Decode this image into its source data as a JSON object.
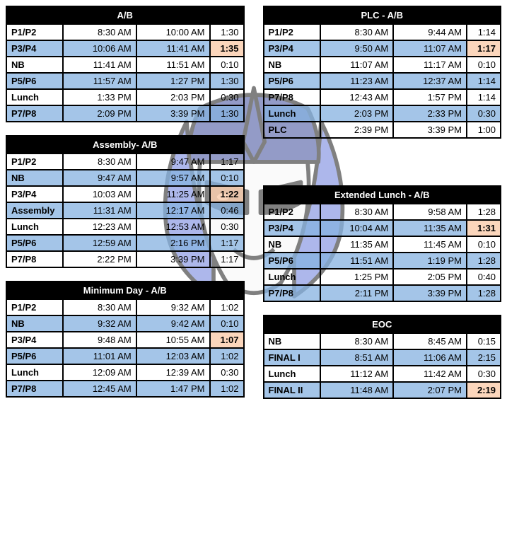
{
  "colors": {
    "header_bg": "#000000",
    "header_fg": "#ffffff",
    "row_shade": "#86b2e0",
    "highlight": "#facfb0",
    "border": "#000000"
  },
  "mascot": {
    "blue_dark": "#3b4a9b",
    "blue_light": "#6b7ddc",
    "outline": "#1a1a1a",
    "white": "#f6f6f6"
  },
  "schedules": [
    {
      "id": "ab",
      "col": 0,
      "title": "A/B",
      "rows": [
        {
          "label": "P1/P2",
          "start": "8:30 AM",
          "end": "10:00 AM",
          "dur": "1:30",
          "shaded": false
        },
        {
          "label": "P3/P4",
          "start": "10:06 AM",
          "end": "11:41 AM",
          "dur": "1:35",
          "shaded": true,
          "hl": true
        },
        {
          "label": "NB",
          "start": "11:41 AM",
          "end": "11:51 AM",
          "dur": "0:10",
          "shaded": false
        },
        {
          "label": "P5/P6",
          "start": "11:57 AM",
          "end": "1:27 PM",
          "dur": "1:30",
          "shaded": true
        },
        {
          "label": "Lunch",
          "start": "1:33 PM",
          "end": "2:03 PM",
          "dur": "0:30",
          "shaded": false
        },
        {
          "label": "P7/P8",
          "start": "2:09 PM",
          "end": "3:39 PM",
          "dur": "1:30",
          "shaded": true
        }
      ]
    },
    {
      "id": "assembly",
      "col": 0,
      "title": "Assembly- A/B",
      "rows": [
        {
          "label": "P1/P2",
          "start": "8:30 AM",
          "end": "9:47 AM",
          "dur": "1:17",
          "shaded": false
        },
        {
          "label": "NB",
          "start": "9:47 AM",
          "end": "9:57 AM",
          "dur": "0:10",
          "shaded": true
        },
        {
          "label": "P3/P4",
          "start": "10:03 AM",
          "end": "11:25 AM",
          "dur": "1:22",
          "shaded": false,
          "hl": true
        },
        {
          "label": "Assembly",
          "start": "11:31 AM",
          "end": "12:17 AM",
          "dur": "0:46",
          "shaded": true
        },
        {
          "label": "Lunch",
          "start": "12:23 AM",
          "end": "12:53 AM",
          "dur": "0:30",
          "shaded": false
        },
        {
          "label": "P5/P6",
          "start": "12:59 AM",
          "end": "2:16 PM",
          "dur": "1:17",
          "shaded": true
        },
        {
          "label": "P7/P8",
          "start": "2:22 PM",
          "end": "3:39 PM",
          "dur": "1:17",
          "shaded": false
        }
      ]
    },
    {
      "id": "min",
      "col": 0,
      "title": "Minimum Day - A/B",
      "rows": [
        {
          "label": "P1/P2",
          "start": "8:30 AM",
          "end": "9:32 AM",
          "dur": "1:02",
          "shaded": false
        },
        {
          "label": "NB",
          "start": "9:32 AM",
          "end": "9:42 AM",
          "dur": "0:10",
          "shaded": true
        },
        {
          "label": "P3/P4",
          "start": "9:48 AM",
          "end": "10:55 AM",
          "dur": "1:07",
          "shaded": false,
          "hl": true
        },
        {
          "label": "P5/P6",
          "start": "11:01 AM",
          "end": "12:03 AM",
          "dur": "1:02",
          "shaded": true
        },
        {
          "label": "Lunch",
          "start": "12:09 AM",
          "end": "12:39 AM",
          "dur": "0:30",
          "shaded": false
        },
        {
          "label": "P7/P8",
          "start": "12:45 AM",
          "end": "1:47 PM",
          "dur": "1:02",
          "shaded": true
        }
      ]
    },
    {
      "id": "plc",
      "col": 1,
      "title": "PLC - A/B",
      "rows": [
        {
          "label": "P1/P2",
          "start": "8:30 AM",
          "end": "9:44 AM",
          "dur": "1:14",
          "shaded": false
        },
        {
          "label": "P3/P4",
          "start": "9:50 AM",
          "end": "11:07 AM",
          "dur": "1:17",
          "shaded": true,
          "hl": true
        },
        {
          "label": "NB",
          "start": "11:07 AM",
          "end": "11:17 AM",
          "dur": "0:10",
          "shaded": false
        },
        {
          "label": "P5/P6",
          "start": "11:23 AM",
          "end": "12:37 AM",
          "dur": "1:14",
          "shaded": true
        },
        {
          "label": "P7/P8",
          "start": "12:43 AM",
          "end": "1:57 PM",
          "dur": "1:14",
          "shaded": false
        },
        {
          "label": "Lunch",
          "start": "2:03 PM",
          "end": "2:33 PM",
          "dur": "0:30",
          "shaded": true
        },
        {
          "label": "PLC",
          "start": "2:39 PM",
          "end": "3:39 PM",
          "dur": "1:00",
          "shaded": false
        }
      ]
    },
    {
      "id": "ext",
      "col": 1,
      "title": "Extended Lunch - A/B",
      "rows": [
        {
          "label": "P1/P2",
          "start": "8:30 AM",
          "end": "9:58 AM",
          "dur": "1:28",
          "shaded": false
        },
        {
          "label": "P3/P4",
          "start": "10:04 AM",
          "end": "11:35 AM",
          "dur": "1:31",
          "shaded": true,
          "hl": true
        },
        {
          "label": "NB",
          "start": "11:35 AM",
          "end": "11:45 AM",
          "dur": "0:10",
          "shaded": false
        },
        {
          "label": "P5/P6",
          "start": "11:51 AM",
          "end": "1:19 PM",
          "dur": "1:28",
          "shaded": true
        },
        {
          "label": "Lunch",
          "start": "1:25 PM",
          "end": "2:05 PM",
          "dur": "0:40",
          "shaded": false
        },
        {
          "label": "P7/P8",
          "start": "2:11 PM",
          "end": "3:39 PM",
          "dur": "1:28",
          "shaded": true
        }
      ]
    },
    {
      "id": "eoc",
      "col": 1,
      "title": "EOC",
      "rows": [
        {
          "label": "NB",
          "start": "8:30 AM",
          "end": "8:45 AM",
          "dur": "0:15",
          "shaded": false
        },
        {
          "label": "FINAL I",
          "start": "8:51 AM",
          "end": "11:06 AM",
          "dur": "2:15",
          "shaded": true
        },
        {
          "label": "Lunch",
          "start": "11:12 AM",
          "end": "11:42 AM",
          "dur": "0:30",
          "shaded": false
        },
        {
          "label": "FINAL II",
          "start": "11:48 AM",
          "end": "2:07 PM",
          "dur": "2:19",
          "shaded": true,
          "hl": true
        }
      ]
    }
  ]
}
